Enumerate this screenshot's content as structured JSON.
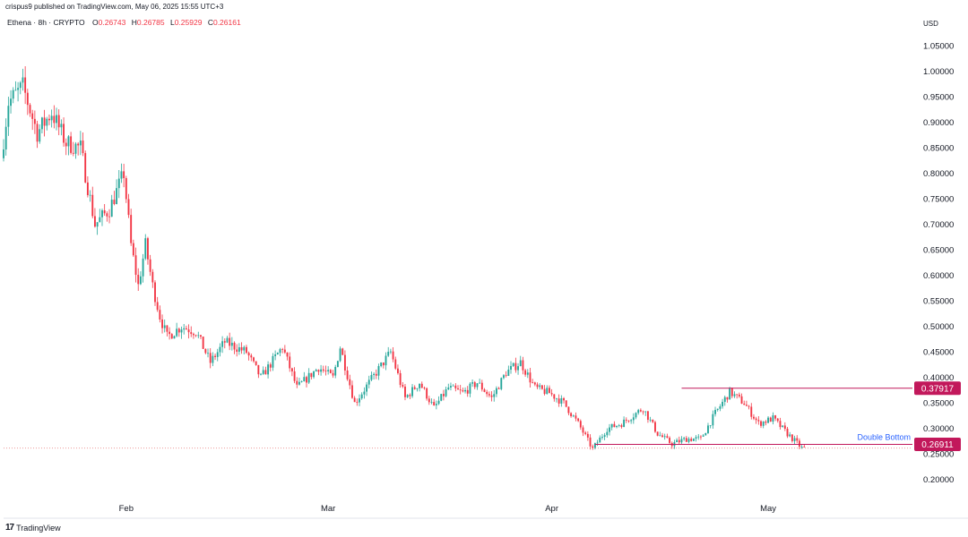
{
  "header": {
    "published": "crispus9 published on TradingView.com, May 06, 2025 15:55 UTC+3",
    "symbol": "Ethena · 8h · CRYPTO",
    "ohlc": [
      {
        "k": "O",
        "v": "0.26743"
      },
      {
        "k": "H",
        "v": "0.26785"
      },
      {
        "k": "L",
        "v": "0.25929"
      },
      {
        "k": "C",
        "v": "0.26161"
      }
    ]
  },
  "footer": {
    "brand": "TradingView",
    "logo_glyph": "17"
  },
  "colors": {
    "up": "#26a69a",
    "down": "#f23645",
    "accent": "#c2185b",
    "price_line": "#e57373",
    "annotation": "#2962ff",
    "axis_text": "#131722"
  },
  "chart_data": {
    "type": "candlestick",
    "currency": "USD",
    "x_range": [
      "2025-01-15",
      "2025-05-21"
    ],
    "ylim": [
      0.17,
      1.07
    ],
    "y_ticks": [
      "1.05000",
      "1.00000",
      "0.95000",
      "0.90000",
      "0.85000",
      "0.80000",
      "0.75000",
      "0.70000",
      "0.65000",
      "0.60000",
      "0.55000",
      "0.50000",
      "0.45000",
      "0.40000",
      "0.35000",
      "0.30000",
      "0.25000",
      "0.20000"
    ],
    "x_ticks": [
      {
        "date": "2025-02-01",
        "label": "Feb"
      },
      {
        "date": "2025-03-01",
        "label": "Mar"
      },
      {
        "date": "2025-04-01",
        "label": "Apr"
      },
      {
        "date": "2025-05-01",
        "label": "May"
      }
    ],
    "price_anchors": [
      [
        "2025-01-15",
        0.83
      ],
      [
        "2025-01-16",
        0.94
      ],
      [
        "2025-01-18",
        0.97
      ],
      [
        "2025-01-20",
        0.88
      ],
      [
        "2025-01-22",
        0.92
      ],
      [
        "2025-01-24",
        0.86
      ],
      [
        "2025-01-26",
        0.85
      ],
      [
        "2025-01-28",
        0.7
      ],
      [
        "2025-01-30",
        0.73
      ],
      [
        "2025-02-01",
        0.8
      ],
      [
        "2025-02-02",
        0.66
      ],
      [
        "2025-02-03",
        0.58
      ],
      [
        "2025-02-04",
        0.66
      ],
      [
        "2025-02-05",
        0.58
      ],
      [
        "2025-02-06",
        0.52
      ],
      [
        "2025-02-07",
        0.48
      ],
      [
        "2025-02-09",
        0.5
      ],
      [
        "2025-02-11",
        0.49
      ],
      [
        "2025-02-13",
        0.43
      ],
      [
        "2025-02-15",
        0.47
      ],
      [
        "2025-02-18",
        0.45
      ],
      [
        "2025-02-20",
        0.4
      ],
      [
        "2025-02-23",
        0.46
      ],
      [
        "2025-02-25",
        0.38
      ],
      [
        "2025-02-28",
        0.42
      ],
      [
        "2025-03-02",
        0.4
      ],
      [
        "2025-03-03",
        0.46
      ],
      [
        "2025-03-05",
        0.35
      ],
      [
        "2025-03-07",
        0.39
      ],
      [
        "2025-03-10",
        0.45
      ],
      [
        "2025-03-12",
        0.36
      ],
      [
        "2025-03-14",
        0.39
      ],
      [
        "2025-03-16",
        0.34
      ],
      [
        "2025-03-18",
        0.38
      ],
      [
        "2025-03-20",
        0.37
      ],
      [
        "2025-03-22",
        0.39
      ],
      [
        "2025-03-24",
        0.36
      ],
      [
        "2025-03-26",
        0.41
      ],
      [
        "2025-03-28",
        0.43
      ],
      [
        "2025-03-30",
        0.38
      ],
      [
        "2025-04-01",
        0.37
      ],
      [
        "2025-04-03",
        0.35
      ],
      [
        "2025-04-05",
        0.31
      ],
      [
        "2025-04-07",
        0.26
      ],
      [
        "2025-04-09",
        0.3
      ],
      [
        "2025-04-11",
        0.31
      ],
      [
        "2025-04-14",
        0.34
      ],
      [
        "2025-04-16",
        0.29
      ],
      [
        "2025-04-18",
        0.27
      ],
      [
        "2025-04-20",
        0.28
      ],
      [
        "2025-04-22",
        0.28
      ],
      [
        "2025-04-24",
        0.33
      ],
      [
        "2025-04-26",
        0.372
      ],
      [
        "2025-04-28",
        0.35
      ],
      [
        "2025-04-30",
        0.31
      ],
      [
        "2025-05-02",
        0.32
      ],
      [
        "2025-05-04",
        0.29
      ],
      [
        "2025-05-06",
        0.262
      ]
    ],
    "levels": [
      {
        "value": 0.37917,
        "label": "0.37917",
        "from": "2025-04-19"
      },
      {
        "value": 0.26911,
        "label": "0.26911",
        "from": "2025-04-07"
      },
      {
        "value": 0.26161,
        "label": "0.26161",
        "style": "dotted"
      }
    ],
    "annotations": [
      {
        "text": "Double Bottom"
      }
    ]
  }
}
